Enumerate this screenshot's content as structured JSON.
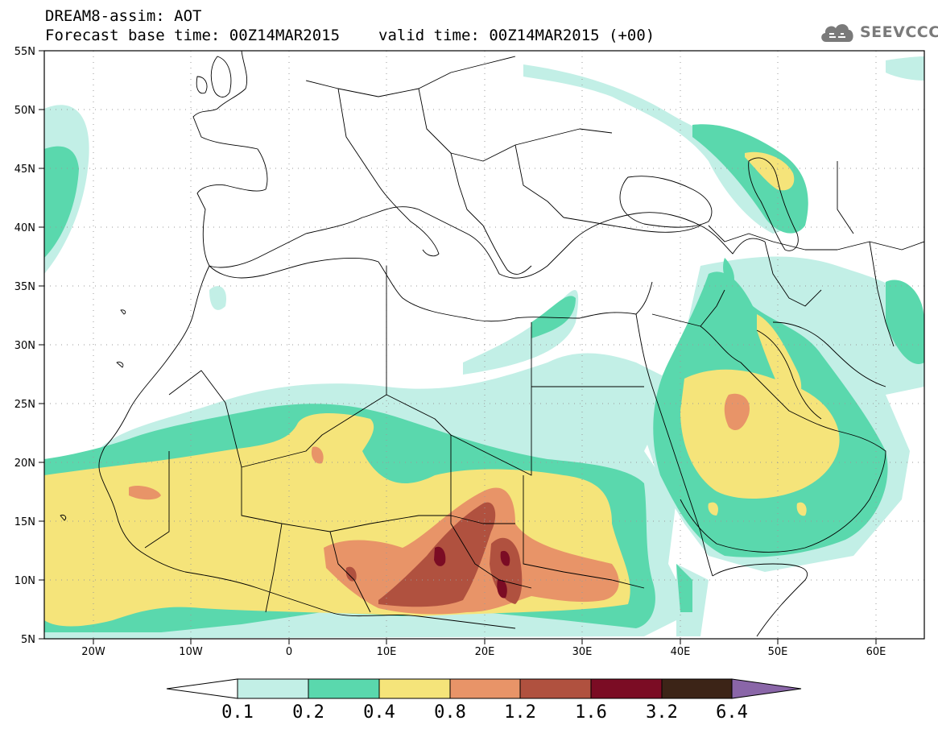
{
  "header": {
    "line1": "DREAM8-assim: AOT",
    "base_time": "Forecast base time: 00Z14MAR2015",
    "valid_time": "valid time: 00Z14MAR2015 (+00)"
  },
  "logo": {
    "text": "SEEVCCC",
    "icon": "cloud-icon",
    "color": "#7a7a7a"
  },
  "map": {
    "lat_ticks": [
      "55N",
      "50N",
      "45N",
      "40N",
      "35N",
      "30N",
      "25N",
      "20N",
      "15N",
      "10N",
      "5N"
    ],
    "lon_ticks": [
      "20W",
      "10W",
      "0",
      "10E",
      "20E",
      "30E",
      "40E",
      "50E",
      "60E"
    ],
    "lon_range": [
      -25,
      65
    ],
    "lat_range": [
      5,
      55
    ],
    "gridlines": "dotted"
  },
  "colorbar": {
    "labels": [
      "0.1",
      "0.2",
      "0.4",
      "0.8",
      "1.2",
      "1.6",
      "3.2",
      "6.4"
    ],
    "colors": [
      "#ffffff",
      "#c2efe6",
      "#5ad8ad",
      "#f5e47a",
      "#e89468",
      "#b0513f",
      "#7b0c24",
      "#3c2417",
      "#8a66a8"
    ]
  }
}
